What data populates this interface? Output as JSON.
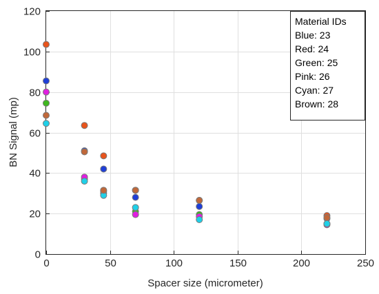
{
  "chart_data": {
    "type": "scatter",
    "xlabel": "Spacer size (micrometer)",
    "ylabel": "BN Signal (mp)",
    "xlim": [
      0,
      250
    ],
    "ylim": [
      0,
      120
    ],
    "xticks": [
      "0",
      "50",
      "100",
      "150",
      "200",
      "250"
    ],
    "yticks": [
      "0",
      "20",
      "40",
      "60",
      "80",
      "100",
      "120"
    ],
    "grid": true,
    "legend_position": "top-right",
    "legend_lines": [
      "Material IDs",
      "Blue: 23",
      "Red: 24",
      "Green: 25",
      "Pink: 26",
      "Cyan: 27",
      "Brown: 28"
    ],
    "series": [
      {
        "color": "#1f3fd8",
        "x": [
          0,
          30,
          45,
          70,
          120,
          220
        ],
        "y": [
          85.5,
          51,
          42,
          28,
          23.5,
          17.5
        ]
      },
      {
        "color": "#e8541c",
        "x": [
          0,
          30,
          45,
          70,
          120,
          220
        ],
        "y": [
          103.5,
          63.5,
          48.5,
          31.5,
          26.5,
          19
        ]
      },
      {
        "color": "#3fb81f",
        "x": [
          0,
          30,
          45,
          70,
          120,
          220
        ],
        "y": [
          74.5,
          37,
          30,
          21,
          19.5,
          15
        ]
      },
      {
        "color": "#e01fe0",
        "x": [
          0,
          30,
          45,
          70,
          120,
          220
        ],
        "y": [
          80,
          38,
          31,
          19.5,
          18.5,
          14.5
        ]
      },
      {
        "color": "#1fd0e8",
        "x": [
          0,
          30,
          45,
          70,
          120,
          220
        ],
        "y": [
          64.5,
          36,
          29,
          23,
          17,
          15
        ]
      },
      {
        "color": "#c0683a",
        "x": [
          0,
          30,
          45,
          70,
          120,
          220
        ],
        "y": [
          68.5,
          50.5,
          31.5,
          31.5,
          26.5,
          18
        ]
      }
    ]
  }
}
